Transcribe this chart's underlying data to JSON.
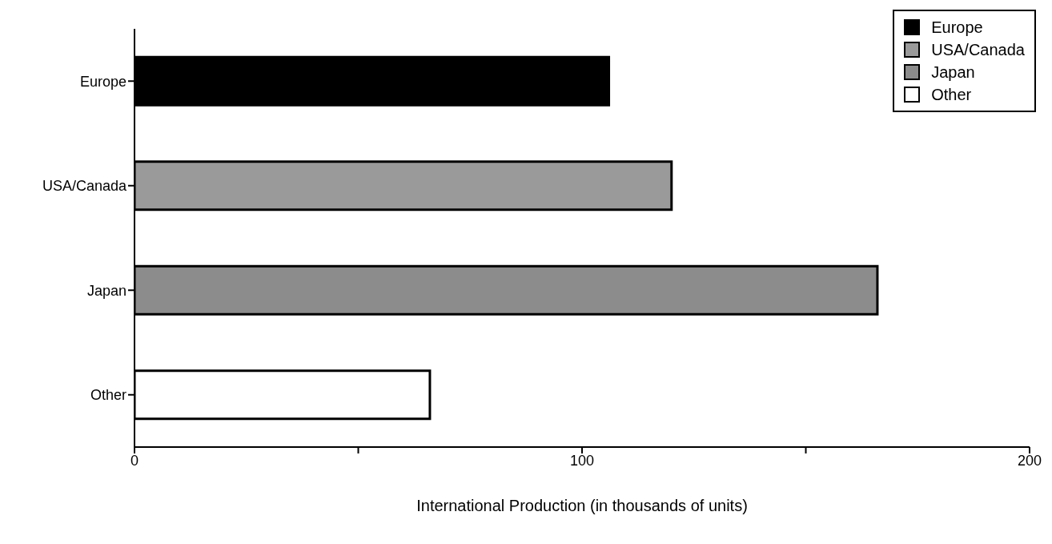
{
  "chart_data": {
    "type": "bar",
    "orientation": "horizontal",
    "stacked": true,
    "categories": [
      "Europe",
      "USA/Canada",
      "Japan",
      "Other"
    ],
    "series": [
      {
        "name": "Europe",
        "color": "#000000",
        "values": [
          106,
          null,
          null,
          null
        ]
      },
      {
        "name": "USA/Canada",
        "color": "#9a9a9a",
        "values": [
          null,
          120,
          null,
          null
        ]
      },
      {
        "name": "Japan",
        "color": "#8c8c8c",
        "values": [
          null,
          null,
          166,
          null
        ]
      },
      {
        "name": "Other",
        "color": "#ffffff",
        "values": [
          null,
          null,
          null,
          66
        ]
      }
    ],
    "xlabel": "International Production (in thousands of units)",
    "xlim": [
      0,
      200
    ],
    "xticks": [
      0,
      {
        "value": 50,
        "label": null
      },
      100,
      {
        "value": 150,
        "label": null
      },
      200
    ],
    "grid": false,
    "legend": "top right"
  }
}
